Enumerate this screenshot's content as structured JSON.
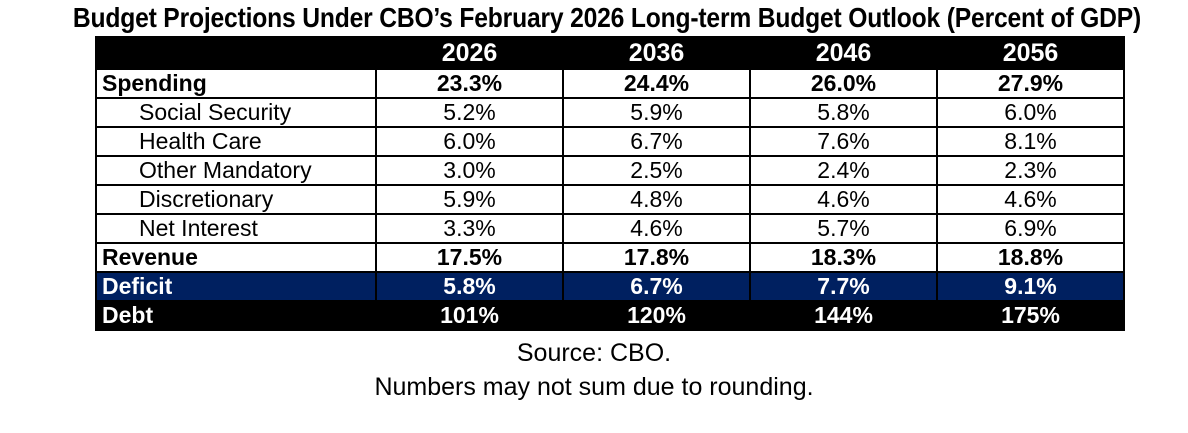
{
  "title": "Budget Projections Under CBO’s February 2026 Long-term Budget Outlook (Percent of GDP)",
  "footnotes": {
    "source": "Source: CBO.",
    "rounding": "Numbers may not sum due to rounding."
  },
  "colors": {
    "header_bg": "#000000",
    "deficit_bg": "#002060",
    "debt_bg": "#000000",
    "border": "#000000",
    "text": "#000000",
    "inverse_text": "#ffffff"
  },
  "chart_data": {
    "type": "table",
    "title": "Budget Projections Under CBO’s February 2026 Long-term Budget Outlook (Percent of GDP)",
    "unit": "Percent of GDP",
    "categories": [
      "2026",
      "2036",
      "2046",
      "2056"
    ],
    "series": [
      {
        "name": "Spending",
        "style": "bold",
        "values": [
          23.3,
          24.4,
          26.0,
          27.9
        ],
        "display": [
          "23.3%",
          "24.4%",
          "26.0%",
          "27.9%"
        ]
      },
      {
        "name": "Social Security",
        "style": "indent",
        "values": [
          5.2,
          5.9,
          5.8,
          6.0
        ],
        "display": [
          "5.2%",
          "5.9%",
          "5.8%",
          "6.0%"
        ]
      },
      {
        "name": "Health Care",
        "style": "indent",
        "values": [
          6.0,
          6.7,
          7.6,
          8.1
        ],
        "display": [
          "6.0%",
          "6.7%",
          "7.6%",
          "8.1%"
        ]
      },
      {
        "name": "Other Mandatory",
        "style": "indent",
        "values": [
          3.0,
          2.5,
          2.4,
          2.3
        ],
        "display": [
          "3.0%",
          "2.5%",
          "2.4%",
          "2.3%"
        ]
      },
      {
        "name": "Discretionary",
        "style": "indent",
        "values": [
          5.9,
          4.8,
          4.6,
          4.6
        ],
        "display": [
          "5.9%",
          "4.8%",
          "4.6%",
          "4.6%"
        ]
      },
      {
        "name": "Net Interest",
        "style": "indent",
        "values": [
          3.3,
          4.6,
          5.7,
          6.9
        ],
        "display": [
          "3.3%",
          "4.6%",
          "5.7%",
          "6.9%"
        ]
      },
      {
        "name": "Revenue",
        "style": "bold",
        "values": [
          17.5,
          17.8,
          18.3,
          18.8
        ],
        "display": [
          "17.5%",
          "17.8%",
          "18.3%",
          "18.8%"
        ]
      },
      {
        "name": "Deficit",
        "style": "deficit",
        "values": [
          5.8,
          6.7,
          7.7,
          9.1
        ],
        "display": [
          "5.8%",
          "6.7%",
          "7.7%",
          "9.1%"
        ]
      },
      {
        "name": "Debt",
        "style": "debt",
        "values": [
          101,
          120,
          144,
          175
        ],
        "display": [
          "101%",
          "120%",
          "144%",
          "175%"
        ]
      }
    ],
    "legend_position": "none",
    "grid": "table-borders"
  }
}
